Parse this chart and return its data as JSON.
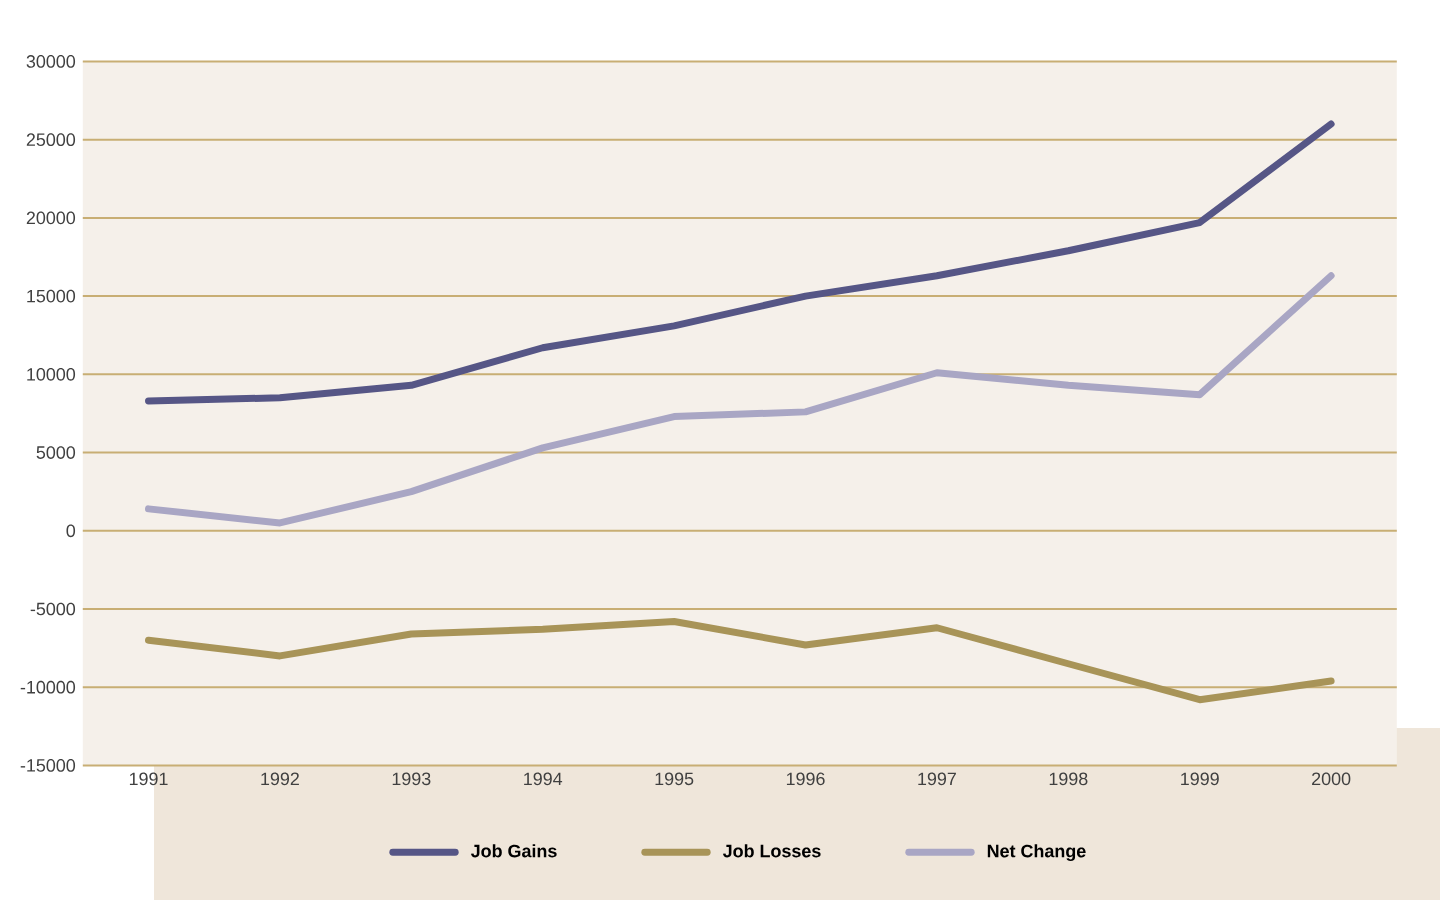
{
  "chart_data": {
    "type": "line",
    "categories": [
      "1991",
      "1992",
      "1993",
      "1994",
      "1995",
      "1996",
      "1997",
      "1998",
      "1999",
      "2000"
    ],
    "series": [
      {
        "name": "Job Gains",
        "color": "#565686",
        "values": [
          8300,
          8500,
          9300,
          11700,
          13100,
          15000,
          16300,
          17900,
          19700,
          26000
        ]
      },
      {
        "name": "Job Losses",
        "color": "#a89458",
        "values": [
          -7000,
          -8000,
          -6600,
          -6300,
          -5800,
          -7300,
          -6200,
          -8500,
          -10800,
          -9600
        ]
      },
      {
        "name": "Net Change",
        "color": "#a9a6c4",
        "values": [
          1400,
          500,
          2500,
          5300,
          7300,
          7600,
          10100,
          9300,
          8700,
          16300
        ]
      }
    ],
    "ylim": [
      -15000,
      30000
    ],
    "yticks": [
      -15000,
      -10000,
      -5000,
      0,
      5000,
      10000,
      15000,
      20000,
      25000,
      30000
    ],
    "grid": "y",
    "legend": "bottom",
    "marker": "none",
    "line_style": "solid"
  }
}
